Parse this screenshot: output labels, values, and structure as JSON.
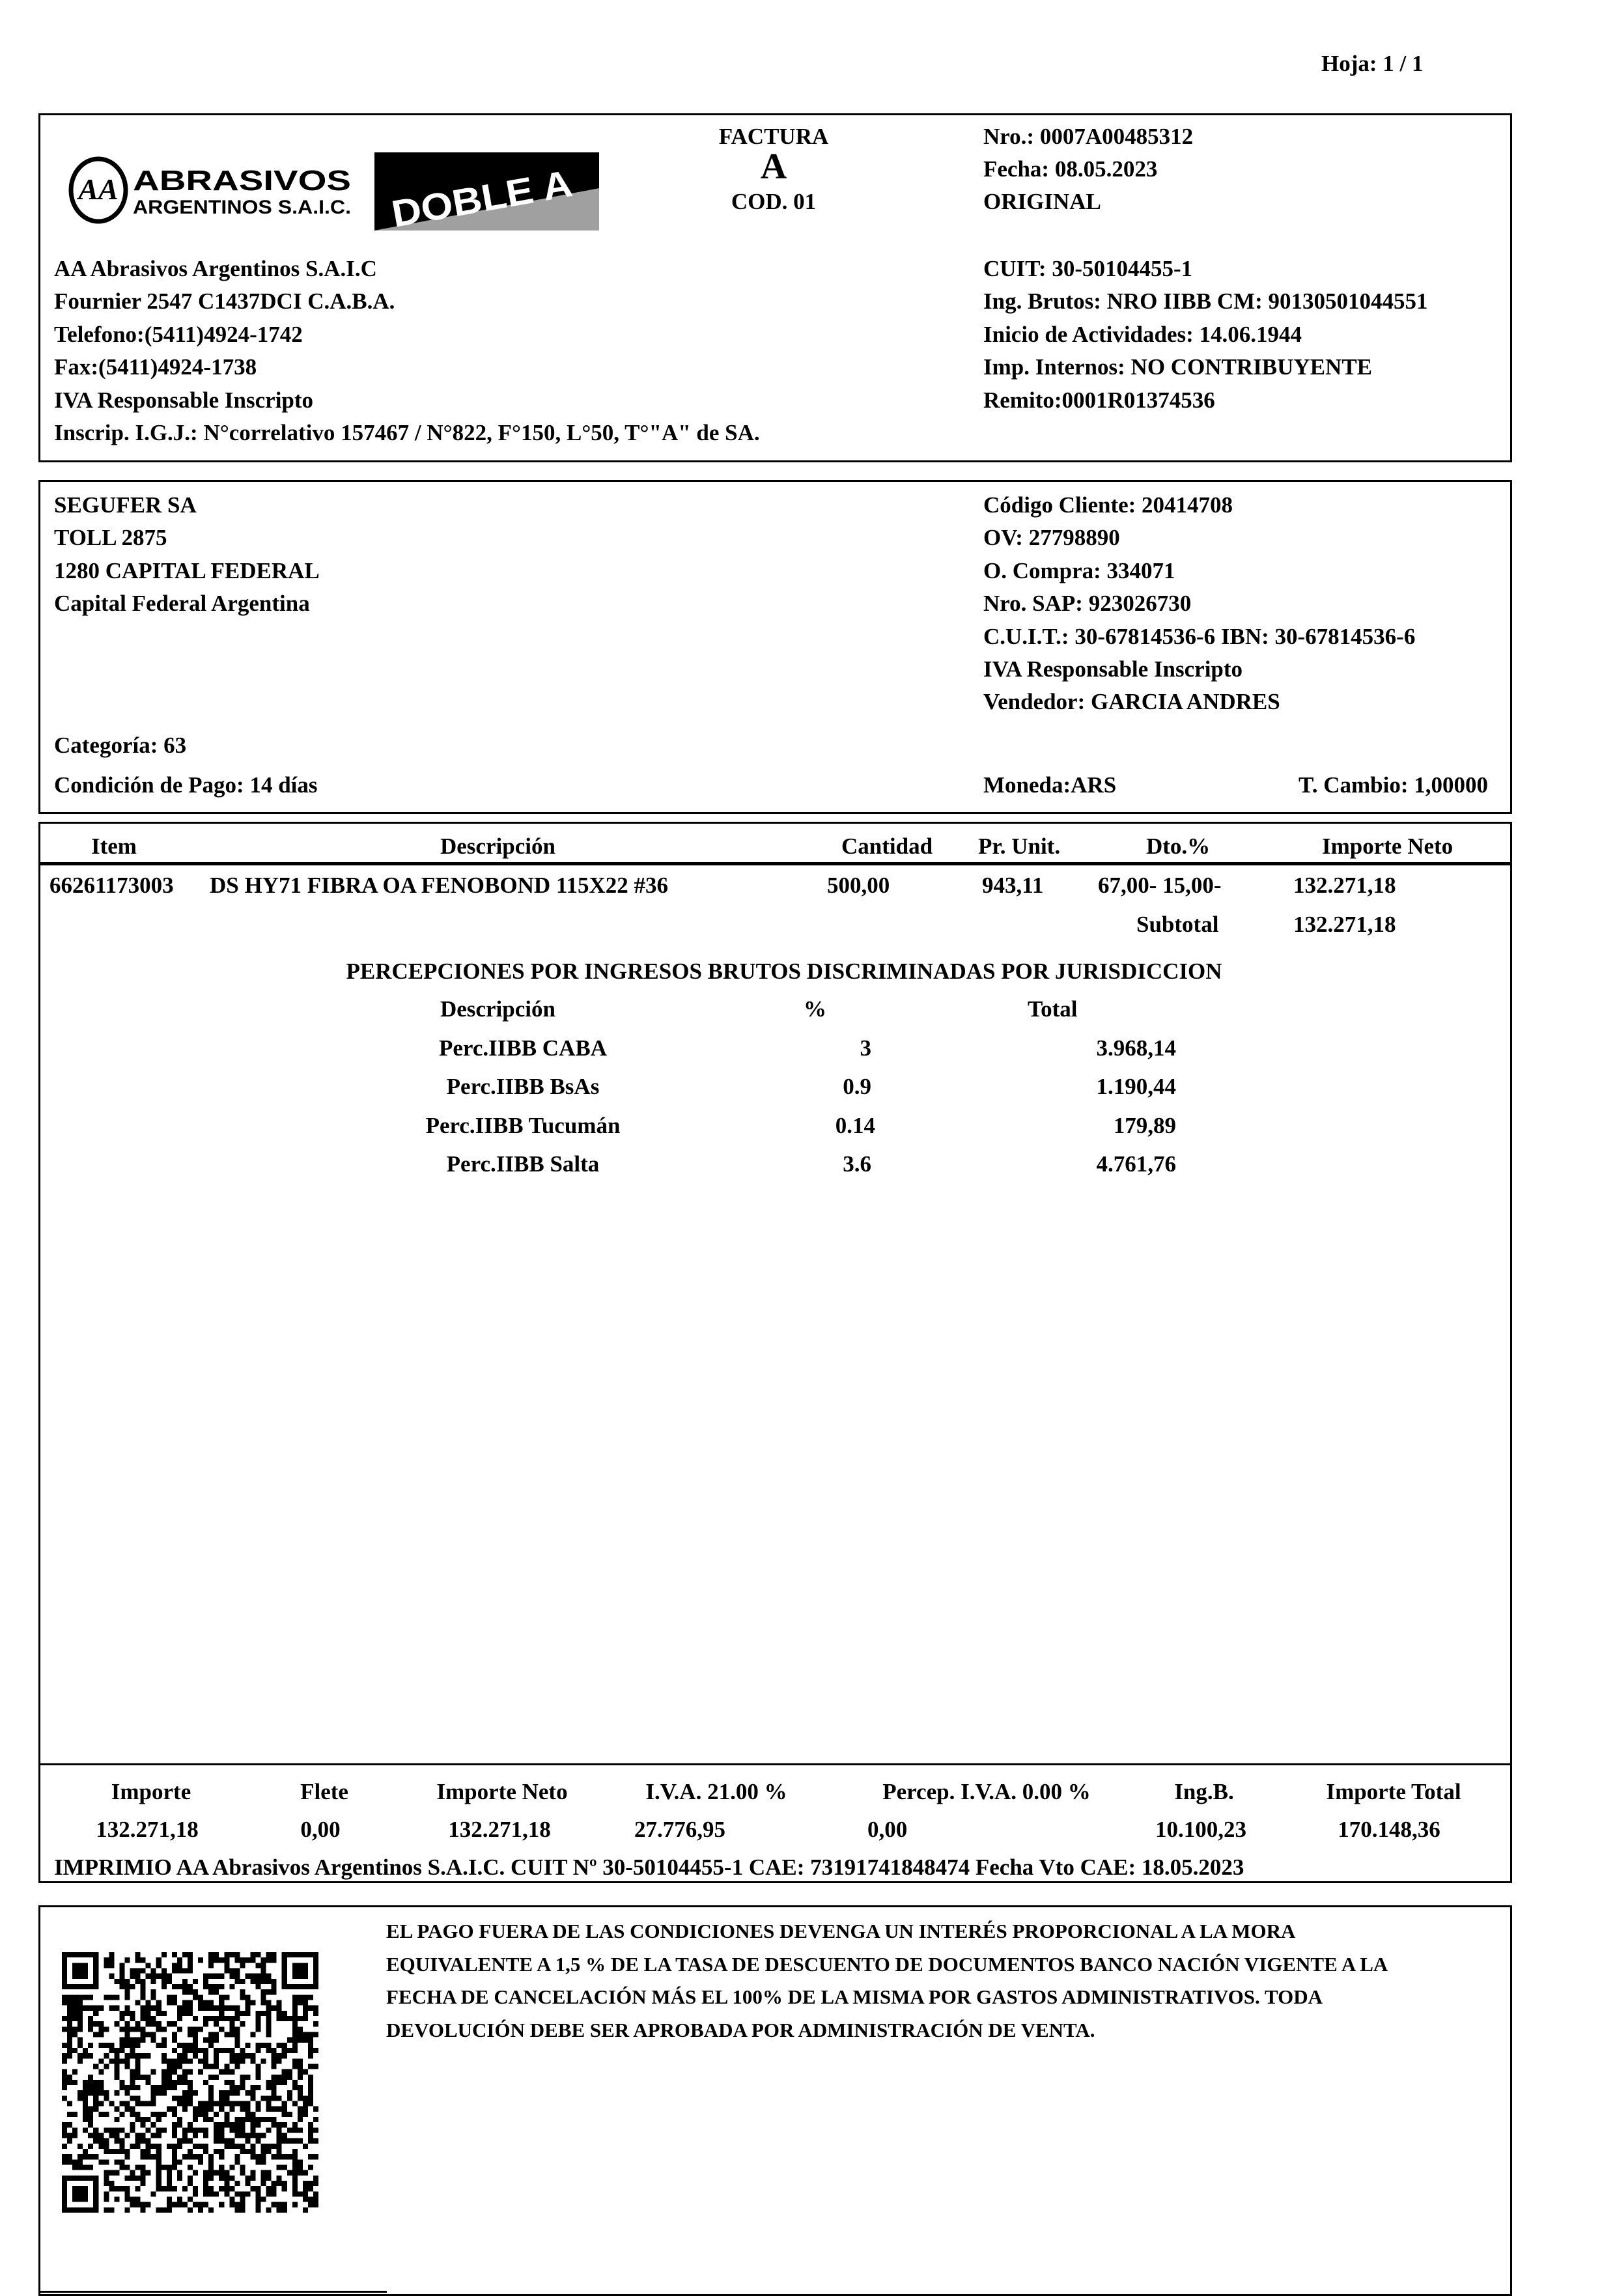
{
  "sheet": "Hoja: 1 /    1",
  "header": {
    "logo_text": "ABRASIVOS ARGENTINOS S.A.I.C.",
    "logo2_text": "DOBLE A",
    "doc_type": "FACTURA",
    "letter": "A",
    "code": "COD. 01",
    "number": "Nro.: 0007A00485312",
    "date": "Fecha: 08.05.2023",
    "copy": "ORIGINAL"
  },
  "issuer": {
    "lines": [
      "AA Abrasivos Argentinos S.A.I.C",
      "Fournier 2547 C1437DCI C.A.B.A.",
      "Telefono:(5411)4924-1742",
      "Fax:(5411)4924-1738",
      "IVA Responsable Inscripto",
      "Inscrip. I.G.J.: N°correlativo 157467 / N°822, F°150, L°50, T°\"A\" de SA."
    ],
    "tax_lines": [
      "CUIT: 30-50104455-1",
      "Ing. Brutos: NRO IIBB CM: 90130501044551",
      "Inicio de Actividades: 14.06.1944",
      "Imp. Internos: NO CONTRIBUYENTE",
      "Remito:0001R01374536"
    ]
  },
  "customer": {
    "lines": [
      "SEGUFER SA",
      "TOLL 2875",
      "1280 CAPITAL FEDERAL",
      "Capital Federal Argentina"
    ],
    "info_lines": [
      "Código Cliente: 20414708",
      "OV: 27798890",
      "O. Compra: 334071",
      "Nro. SAP: 923026730",
      "C.U.I.T.: 30-67814536-6  IBN: 30-67814536-6",
      "IVA Responsable Inscripto",
      "Vendedor: GARCIA ANDRES"
    ],
    "category": "Categoría: 63",
    "payment": "Condición de Pago: 14 días",
    "currency": "Moneda:ARS",
    "exchange": "T. Cambio: 1,00000"
  },
  "items": {
    "columns": [
      "Item",
      "Descripción",
      "Cantidad",
      "Pr. Unit.",
      "Dto.%",
      "Importe Neto"
    ],
    "rows": [
      {
        "item": "66261173003",
        "desc": "DS HY71 FIBRA OA FENOBOND 115X22 #36",
        "qty": "500,00",
        "unit": "943,11",
        "disc": "67,00- 15,00-",
        "net": "132.271,18"
      }
    ],
    "subtotal_label": "Subtotal",
    "subtotal": "132.271,18"
  },
  "perceptions": {
    "title": "PERCEPCIONES POR INGRESOS BRUTOS DISCRIMINADAS POR JURISDICCION",
    "columns": [
      "Descripción",
      "%",
      "Total"
    ],
    "rows": [
      {
        "desc": "Perc.IIBB CABA",
        "pct": "3",
        "total": "3.968,14"
      },
      {
        "desc": "Perc.IIBB BsAs",
        "pct": "0.9",
        "total": "1.190,44"
      },
      {
        "desc": "Perc.IIBB Tucumán",
        "pct": "0.14",
        "total": "179,89"
      },
      {
        "desc": "Perc.IIBB Salta",
        "pct": "3.6",
        "total": "4.761,76"
      }
    ]
  },
  "totals": {
    "labels": [
      "Importe",
      "Flete",
      "Importe Neto",
      "I.V.A. 21.00 %",
      "Percep. I.V.A. 0.00 %",
      "Ing.B.",
      "Importe Total"
    ],
    "values": [
      "132.271,18",
      "0,00",
      "132.271,18",
      "27.776,95",
      "0,00",
      "10.100,23",
      "170.148,36"
    ],
    "printed_by": "IMPRIMIO AA Abrasivos Argentinos S.A.I.C. CUIT Nº  30-50104455-1  CAE: 73191741848474 Fecha Vto CAE: 18.05.2023"
  },
  "footer": {
    "notice_lines": [
      "EL PAGO FUERA DE LAS CONDICIONES DEVENGA UN INTERÉS PROPORCIONAL A LA MORA",
      "EQUIVALENTE A 1,5 % DE LA TASA DE DESCUENTO DE DOCUMENTOS BANCO NACIÓN VIGENTE A LA",
      "FECHA DE CANCELACIÓN MÁS EL 100% DE LA MISMA POR GASTOS ADMINISTRATIVOS. TODA",
      "DEVOLUCIÓN DEBE SER APROBADA POR ADMINISTRACIÓN DE VENTA."
    ],
    "qr_icon": "qr-code"
  }
}
